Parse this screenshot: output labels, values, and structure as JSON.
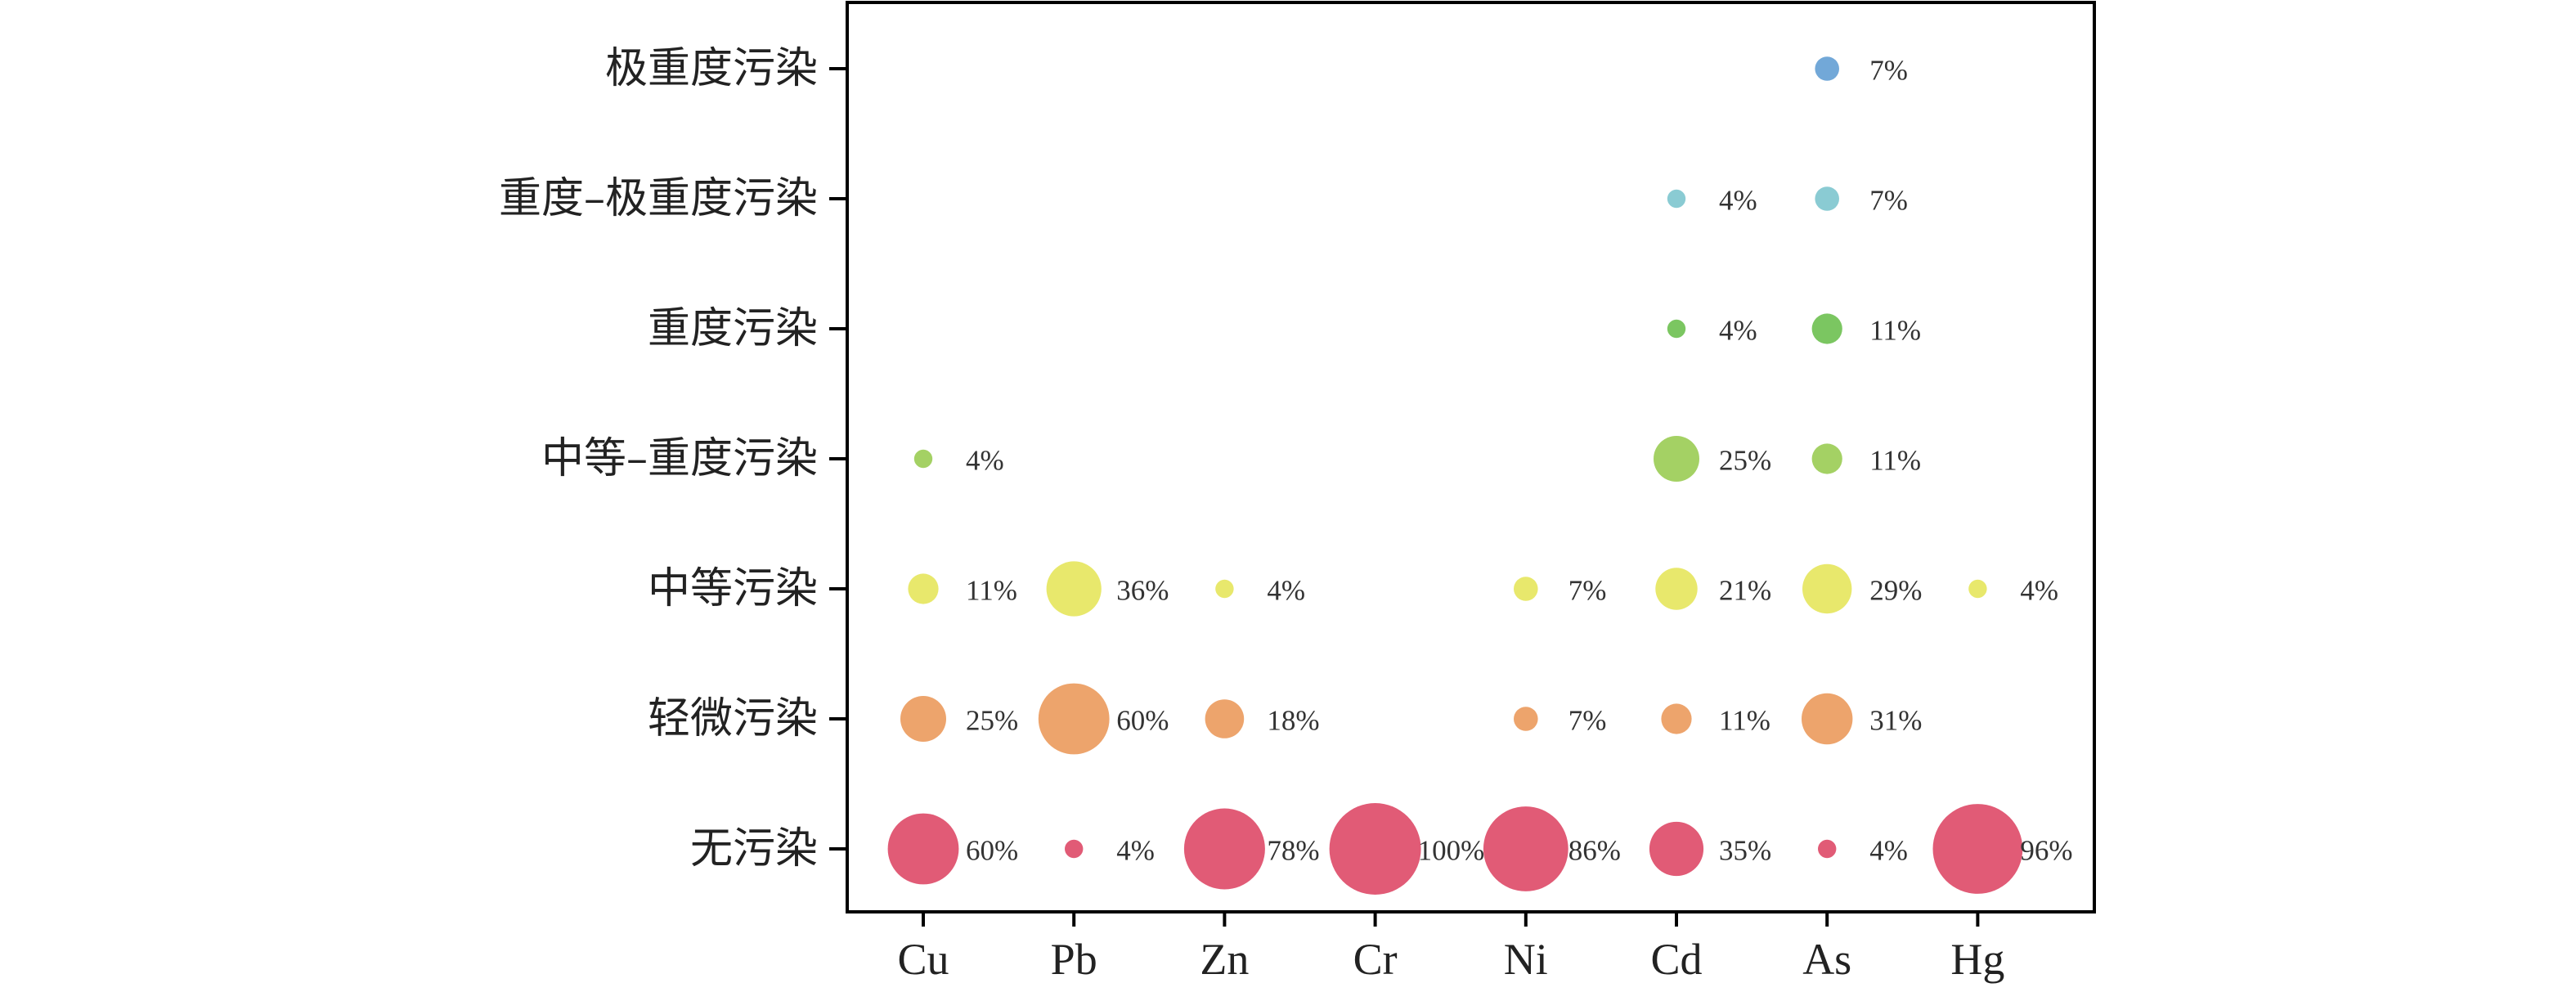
{
  "chart_data": {
    "type": "bubble",
    "categories": [
      "Cu",
      "Pb",
      "Zn",
      "Cr",
      "Ni",
      "Cd",
      "As",
      "Hg"
    ],
    "levels": [
      "无污染",
      "轻微污染",
      "中等污染",
      "中等–重度污染",
      "重度污染",
      "重度–极重度污染",
      "极重度污染"
    ],
    "level_colors": [
      "#e15b76",
      "#eda46c",
      "#e8e86c",
      "#a4d164",
      "#7bc661",
      "#8acbd3",
      "#72a8d8"
    ],
    "points": [
      {
        "x": "Cu",
        "level": "无污染",
        "value": 60,
        "label": "60%"
      },
      {
        "x": "Pb",
        "level": "无污染",
        "value": 4,
        "label": "4%"
      },
      {
        "x": "Zn",
        "level": "无污染",
        "value": 78,
        "label": "78%"
      },
      {
        "x": "Cr",
        "level": "无污染",
        "value": 100,
        "label": "100%"
      },
      {
        "x": "Ni",
        "level": "无污染",
        "value": 86,
        "label": "86%"
      },
      {
        "x": "Cd",
        "level": "无污染",
        "value": 35,
        "label": "35%"
      },
      {
        "x": "As",
        "level": "无污染",
        "value": 4,
        "label": "4%"
      },
      {
        "x": "Hg",
        "level": "无污染",
        "value": 96,
        "label": "96%"
      },
      {
        "x": "Cu",
        "level": "轻微污染",
        "value": 25,
        "label": "25%"
      },
      {
        "x": "Pb",
        "level": "轻微污染",
        "value": 60,
        "label": "60%"
      },
      {
        "x": "Zn",
        "level": "轻微污染",
        "value": 18,
        "label": "18%"
      },
      {
        "x": "Ni",
        "level": "轻微污染",
        "value": 7,
        "label": "7%"
      },
      {
        "x": "Cd",
        "level": "轻微污染",
        "value": 11,
        "label": "11%"
      },
      {
        "x": "As",
        "level": "轻微污染",
        "value": 31,
        "label": "31%"
      },
      {
        "x": "Cu",
        "level": "中等污染",
        "value": 11,
        "label": "11%"
      },
      {
        "x": "Pb",
        "level": "中等污染",
        "value": 36,
        "label": "36%"
      },
      {
        "x": "Zn",
        "level": "中等污染",
        "value": 4,
        "label": "4%"
      },
      {
        "x": "Ni",
        "level": "中等污染",
        "value": 7,
        "label": "7%"
      },
      {
        "x": "Cd",
        "level": "中等污染",
        "value": 21,
        "label": "21%"
      },
      {
        "x": "As",
        "level": "中等污染",
        "value": 29,
        "label": "29%"
      },
      {
        "x": "Hg",
        "level": "中等污染",
        "value": 4,
        "label": "4%"
      },
      {
        "x": "Cu",
        "level": "中等–重度污染",
        "value": 4,
        "label": "4%"
      },
      {
        "x": "Cd",
        "level": "中等–重度污染",
        "value": 25,
        "label": "25%"
      },
      {
        "x": "As",
        "level": "中等–重度污染",
        "value": 11,
        "label": "11%"
      },
      {
        "x": "Cd",
        "level": "重度污染",
        "value": 4,
        "label": "4%"
      },
      {
        "x": "As",
        "level": "重度污染",
        "value": 11,
        "label": "11%"
      },
      {
        "x": "Cd",
        "level": "重度–极重度污染",
        "value": 4,
        "label": "4%"
      },
      {
        "x": "As",
        "level": "重度–极重度污染",
        "value": 7,
        "label": "7%"
      },
      {
        "x": "As",
        "level": "极重度污染",
        "value": 7,
        "label": "7%"
      }
    ],
    "legend": "none",
    "grid": false
  }
}
